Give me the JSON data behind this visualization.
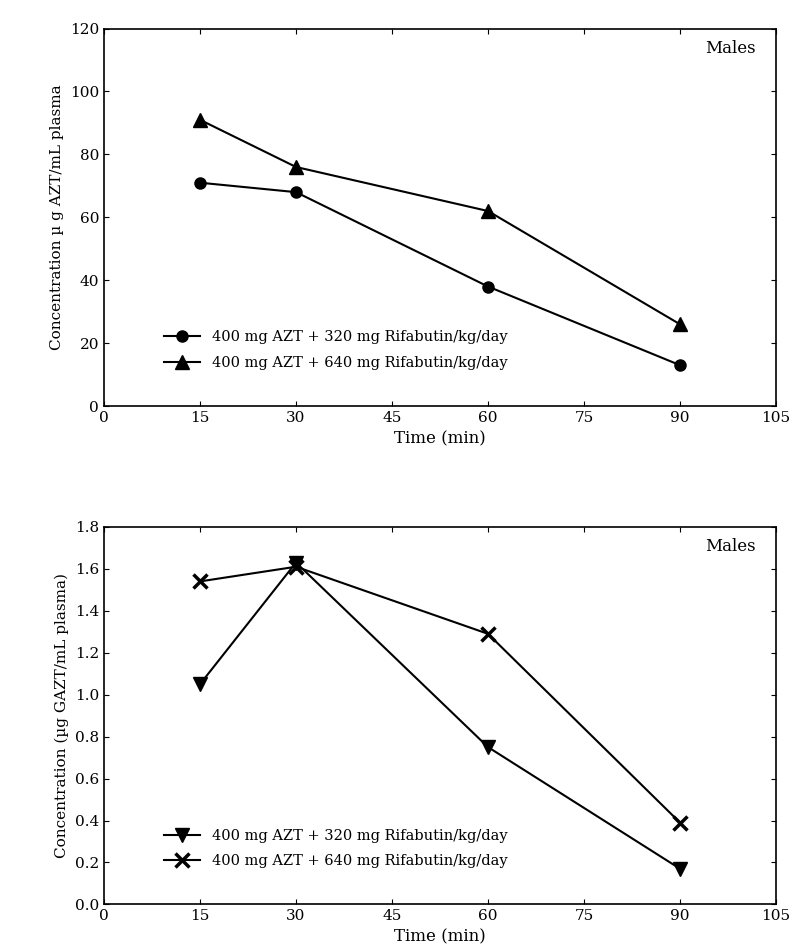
{
  "top_chart": {
    "title_text": "Males",
    "xlabel": "Time (min)",
    "ylabel": "Concentration µ g AZT/mL plasma",
    "xlim": [
      0,
      105
    ],
    "ylim": [
      0,
      120
    ],
    "xticks": [
      0,
      15,
      30,
      45,
      60,
      75,
      90,
      105
    ],
    "yticks": [
      0,
      20,
      40,
      60,
      80,
      100,
      120
    ],
    "series": [
      {
        "label": "400 mg AZT + 320 mg Rifabutin/kg/day",
        "x": [
          15,
          30,
          60,
          90
        ],
        "y": [
          71,
          68,
          38,
          13
        ],
        "marker": "o",
        "markersize": 8,
        "color": "#000000",
        "linewidth": 1.5
      },
      {
        "label": "400 mg AZT + 640 mg Rifabutin/kg/day",
        "x": [
          15,
          30,
          60,
          90
        ],
        "y": [
          91,
          76,
          62,
          26
        ],
        "marker": "^",
        "markersize": 10,
        "color": "#000000",
        "linewidth": 1.5
      }
    ]
  },
  "bottom_chart": {
    "title_text": "Males",
    "xlabel": "Time (min)",
    "ylabel": "Concentration (µg GAZT/mL plasma)",
    "xlim": [
      0,
      105
    ],
    "ylim": [
      0,
      1.8
    ],
    "xticks": [
      0,
      15,
      30,
      45,
      60,
      75,
      90,
      105
    ],
    "yticks": [
      0.0,
      0.2,
      0.4,
      0.6,
      0.8,
      1.0,
      1.2,
      1.4,
      1.6,
      1.8
    ],
    "series": [
      {
        "label": "400 mg AZT + 320 mg Rifabutin/kg/day",
        "x": [
          15,
          30,
          60,
          90
        ],
        "y": [
          1.05,
          1.63,
          0.75,
          0.17
        ],
        "marker": "v",
        "markersize": 10,
        "color": "#000000",
        "linewidth": 1.5
      },
      {
        "label": "400 mg AZT + 640 mg Rifabutin/kg/day",
        "x": [
          15,
          30,
          60,
          90
        ],
        "y": [
          1.54,
          1.61,
          1.29,
          0.39
        ],
        "marker": "x",
        "markersize": 10,
        "color": "#000000",
        "linewidth": 1.5,
        "markeredgewidth": 2.5
      }
    ]
  },
  "background_color": "#ffffff",
  "font_color": "#000000",
  "font_family": "DejaVu Serif"
}
